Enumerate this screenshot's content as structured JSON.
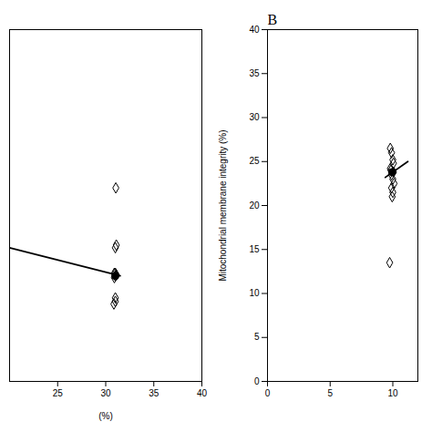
{
  "chart_data": [
    {
      "type": "scatter",
      "xlabel": "(%)",
      "xlim": [
        20,
        40
      ],
      "xticks": [
        25,
        30,
        35,
        40
      ],
      "ylim": [
        0,
        40
      ],
      "yticks": [],
      "tick_labels": "x",
      "series": [
        {
          "type": "scatter",
          "marker": "diamond",
          "color": "#000000",
          "x": [
            31.0,
            31.0,
            31.1,
            31.0,
            30.9,
            31.1,
            30.9,
            31.0,
            30.85,
            31.05,
            31.0
          ],
          "y": [
            12.0,
            12.3,
            15.5,
            15.2,
            11.8,
            12.1,
            12.3,
            9.1,
            8.8,
            22.0,
            9.5
          ]
        },
        {
          "type": "scatter",
          "marker": "circle",
          "color": "#000000",
          "x": [
            31.0
          ],
          "y": [
            12.0
          ]
        },
        {
          "type": "line",
          "color": "#000000",
          "x": [
            20.0,
            31.5
          ],
          "y": [
            15.2,
            12.0
          ]
        }
      ]
    },
    {
      "type": "scatter",
      "title": "B",
      "ylabel": "Mitochondrial membrane integrity (%)",
      "xlim": [
        0,
        12
      ],
      "xticks": [
        0,
        5,
        10
      ],
      "ylim": [
        0,
        40
      ],
      "yticks": [
        0,
        5,
        10,
        15,
        20,
        25,
        30,
        35,
        40
      ],
      "series": [
        {
          "type": "scatter",
          "marker": "diamond",
          "color": "#000000",
          "x": [
            9.8,
            9.9,
            10.0,
            10.05,
            9.8,
            9.9,
            10.0,
            10.1,
            9.9,
            10.0,
            10.05,
            9.85,
            9.75,
            9.95
          ],
          "y": [
            26.5,
            26.0,
            25.2,
            24.8,
            24.2,
            23.5,
            23.0,
            22.5,
            22.0,
            21.5,
            23.8,
            24.0,
            13.5,
            21.0
          ]
        },
        {
          "type": "scatter",
          "marker": "circle",
          "color": "#000000",
          "x": [
            9.95
          ],
          "y": [
            23.8
          ]
        },
        {
          "type": "line",
          "color": "#000000",
          "x": [
            9.4,
            11.2
          ],
          "y": [
            23.2,
            25.0
          ]
        }
      ]
    }
  ]
}
